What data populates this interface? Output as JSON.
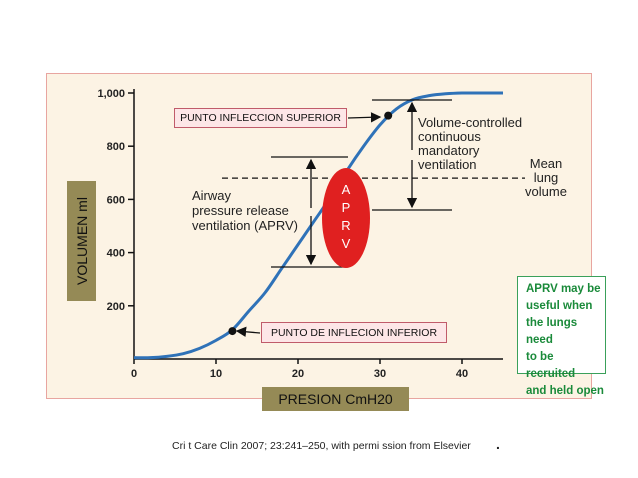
{
  "chart_data": {
    "type": "line",
    "title": "",
    "xlabel": "PRESION CmH20",
    "ylabel": "VOLUMEN  ml",
    "x_ticks": [
      "0",
      "10",
      "20",
      "30",
      "40"
    ],
    "y_ticks": [
      "200",
      "400",
      "600",
      "800",
      "1,000"
    ],
    "xlim": [
      0,
      45
    ],
    "ylim": [
      0,
      1000
    ],
    "series": [
      {
        "x": [
          0,
          2,
          4,
          6,
          8,
          10,
          12,
          14,
          16,
          18,
          20,
          22,
          24,
          26,
          28,
          30,
          32,
          34,
          36,
          38,
          40,
          42,
          45
        ],
        "y": [
          5,
          5,
          10,
          20,
          40,
          70,
          110,
          180,
          250,
          340,
          430,
          520,
          610,
          710,
          800,
          880,
          940,
          975,
          990,
          997,
          1000,
          1000,
          1000
        ]
      }
    ],
    "points": [
      {
        "x": 12,
        "y": 105
      },
      {
        "x": 31,
        "y": 915
      }
    ],
    "mean_lung_volume": 680,
    "annotations": {
      "upper_inflection": "PUNTO INFLECCION SUPERIOR",
      "lower_inflection": "PUNTO DE INFLECION INFERIOR",
      "vcv": [
        "Volume-controlled",
        "continuous",
        "mandatory",
        "ventilation"
      ],
      "aprv_text": [
        "Airway",
        "pressure release",
        "ventilation (APRV)"
      ],
      "mean_lung": [
        "Mean",
        "lung",
        "volume"
      ],
      "aprv_letters": [
        "A",
        "P",
        "R",
        "V"
      ]
    }
  },
  "note": [
    "APRV may be",
    "useful when",
    "the lungs need",
    "to be recruited",
    "and held open"
  ],
  "caption": "Cri t Care Clin 2007; 23:241–250, with permi ssion from Elsevier",
  "caption_dot": ".",
  "colors": {
    "curve": "#2f72b8",
    "panel_bg": "#fcf3e4",
    "label_box": "#958a56",
    "ellipse": "#e02020",
    "note_text": "#1a8a3a"
  }
}
